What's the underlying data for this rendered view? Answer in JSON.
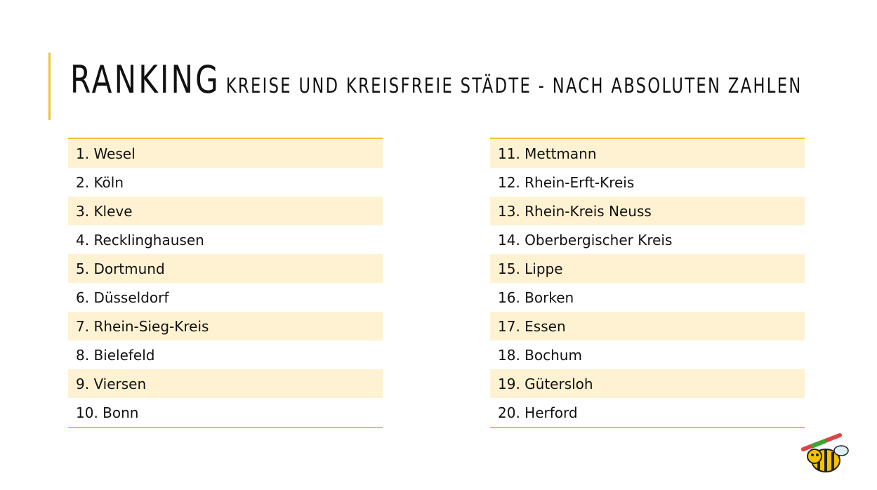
{
  "header": {
    "title": "RANKING",
    "subtitle": "KREISE UND KREISFREIE STÄDTE - NACH ABSOLUTEN ZAHLEN"
  },
  "tables": [
    {
      "rows": [
        "1. Wesel",
        "2. Köln",
        "3. Kleve",
        "4. Recklinghausen",
        "5. Dortmund",
        "6. Düsseldorf",
        "7. Rhein-Sieg-Kreis",
        "8. Bielefeld",
        "9. Viersen",
        "10. Bonn"
      ]
    },
    {
      "rows": [
        "11. Mettmann",
        "12. Rhein-Erft-Kreis",
        "13. Rhein-Kreis Neuss",
        "14. Oberbergischer Kreis",
        "15. Lippe",
        "16. Borken",
        "17. Essen",
        "18. Bochum",
        "19. Gütersloh",
        "20. Herford"
      ]
    }
  ]
}
